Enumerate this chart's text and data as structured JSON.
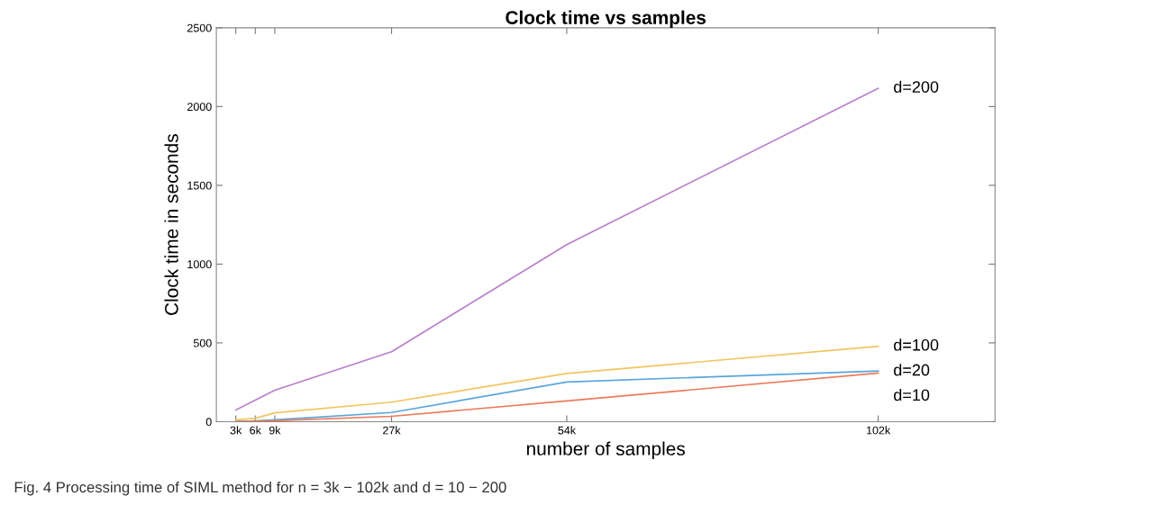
{
  "chart_data": {
    "type": "line",
    "title": "Clock time vs samples",
    "xlabel": "number of samples",
    "ylabel": "Clock time in seconds",
    "x": [
      3,
      6,
      9,
      27,
      54,
      102
    ],
    "xlim": [
      0,
      120
    ],
    "xticks": [
      {
        "value": 3,
        "label": "3k"
      },
      {
        "value": 6,
        "label": "6k"
      },
      {
        "value": 9,
        "label": "9k"
      },
      {
        "value": 27,
        "label": "27k"
      },
      {
        "value": 54,
        "label": "54k"
      },
      {
        "value": 102,
        "label": "102k"
      }
    ],
    "ylim": [
      0,
      2500
    ],
    "yticks": [
      0,
      500,
      1000,
      1500,
      2000,
      2500
    ],
    "grid": false,
    "legend": false,
    "series": [
      {
        "name": "d=200",
        "color": "#b87fcc",
        "values": [
          74,
          137,
          200,
          444,
          1124,
          2116
        ]
      },
      {
        "name": "d=100",
        "color": "#f2c45f",
        "values": [
          12,
          22,
          56,
          124,
          306,
          478
        ]
      },
      {
        "name": "d=20",
        "color": "#5aa5dc",
        "values": [
          0,
          5,
          12,
          58,
          252,
          322
        ]
      },
      {
        "name": "d=10",
        "color": "#ec7a5a",
        "values": [
          0,
          3,
          6,
          34,
          132,
          308
        ]
      }
    ],
    "annotations": [
      "Fig. 4 Processing time of SIML method for n = 3k − 102k and d = 10 − 200"
    ]
  }
}
